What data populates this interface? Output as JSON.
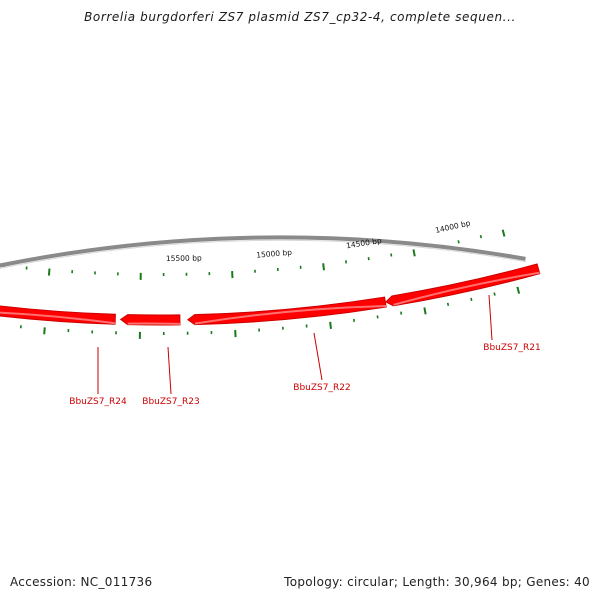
{
  "title": "Borrelia burgdorferi ZS7 plasmid ZS7_cp32-4, complete sequen...",
  "footer": {
    "accession": "Accession: NC_011736",
    "summary": "Topology: circular; Length: 30,964 bp; Genes: 40"
  },
  "colors": {
    "backbone": "#8a8a8a",
    "gene": "#ff0000",
    "gene_dark": "#cc0000",
    "gene_light": "#ff7070",
    "tick": "#1a7a1a",
    "label": "#cc0000"
  },
  "ticks": [
    {
      "label": "14000 bp"
    },
    {
      "label": "14500 bp"
    },
    {
      "label": "15000 bp"
    },
    {
      "label": "15500 bp"
    }
  ],
  "genes": [
    {
      "label": "BbuZS7_R21",
      "strand": "reverse"
    },
    {
      "label": "BbuZS7_R22",
      "strand": "reverse"
    },
    {
      "label": "BbuZS7_R23",
      "strand": "reverse"
    },
    {
      "label": "BbuZS7_R24",
      "strand": "reverse"
    }
  ]
}
